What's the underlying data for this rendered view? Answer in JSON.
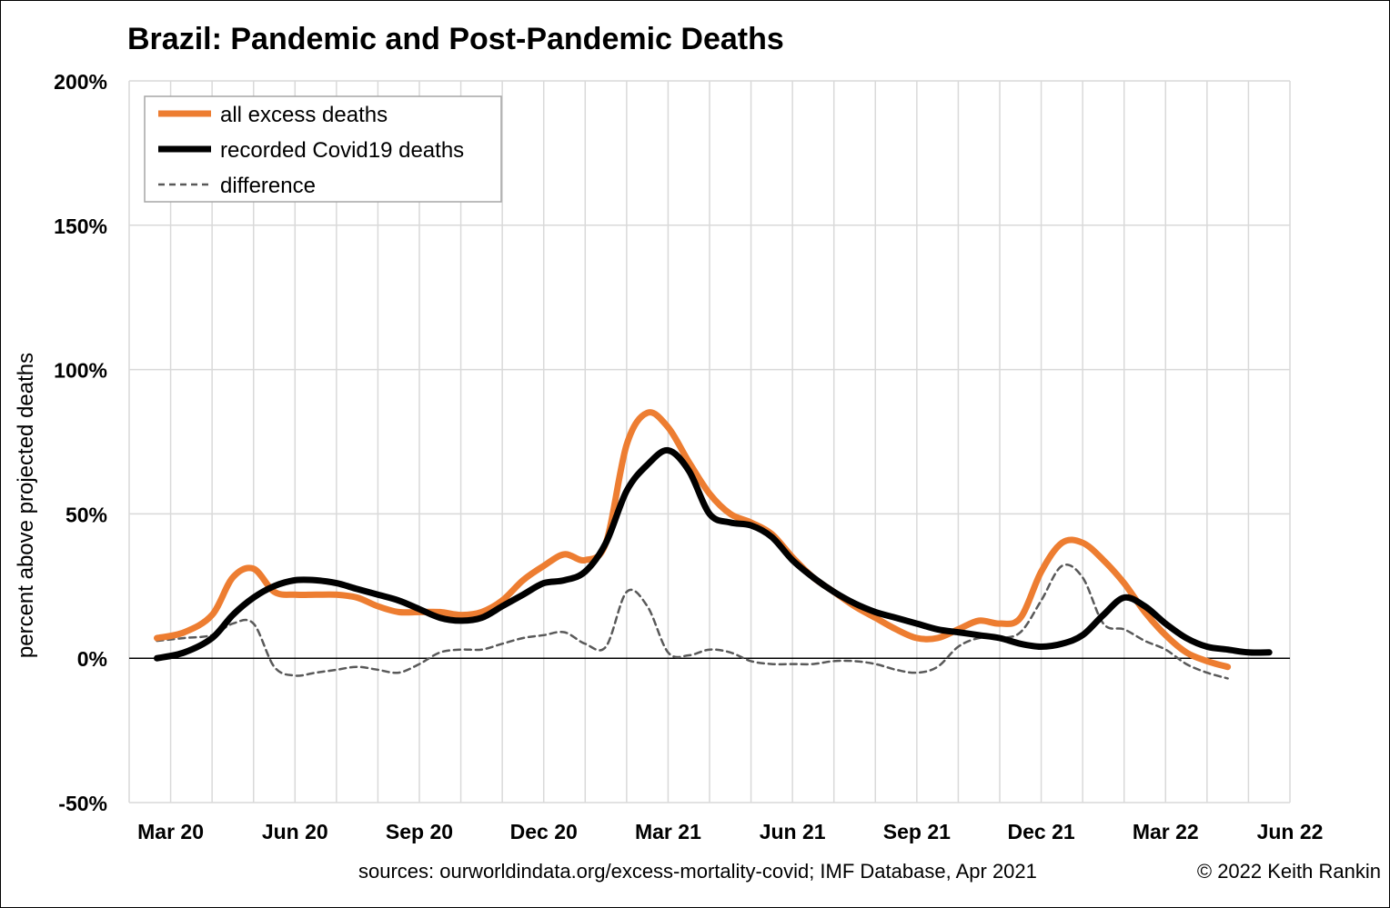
{
  "title_country": "Brazil",
  "title_rest": ": Pandemic and Post-Pandemic Deaths",
  "chart_data": {
    "type": "line",
    "title": "Brazil: Pandemic and Post-Pandemic Deaths",
    "ylabel": "percent above projected deaths",
    "xlabel": "",
    "ylim": [
      -50,
      200
    ],
    "y_ticks": [
      "-50%",
      "0%",
      "50%",
      "100%",
      "150%",
      "200%"
    ],
    "y_tick_values": [
      -50,
      0,
      50,
      100,
      150,
      200
    ],
    "x_ticks": [
      "Mar 20",
      "Jun 20",
      "Sep 20",
      "Dec 20",
      "Mar 21",
      "Jun 21",
      "Sep 21",
      "Dec 21",
      "Mar 22",
      "Jun 22"
    ],
    "x_units": "months since Mar 20",
    "grid": "vertical monthly and horizontal at each tick",
    "legend_position": "top-left",
    "series": [
      {
        "name": "all excess deaths",
        "color": "#ED7D31",
        "style": "solid-thick",
        "x": [
          -0.33,
          0.33,
          1.0,
          1.5,
          2.0,
          2.5,
          3.0,
          3.5,
          4.0,
          4.5,
          5.0,
          5.5,
          6.0,
          6.5,
          7.0,
          7.5,
          8.0,
          8.5,
          9.0,
          9.5,
          10.0,
          10.5,
          11.0,
          11.5,
          12.0,
          12.5,
          13.0,
          13.5,
          14.0,
          14.5,
          15.0,
          15.5,
          16.0,
          16.5,
          17.0,
          17.5,
          18.0,
          18.5,
          19.0,
          19.5,
          20.0,
          20.5,
          21.0,
          21.5,
          22.0,
          22.5,
          23.0,
          23.5,
          24.0,
          24.5,
          25.0,
          25.5
        ],
        "values": [
          7,
          9,
          15,
          28,
          31,
          23,
          22,
          22,
          22,
          21,
          18,
          16,
          16,
          16,
          15,
          16,
          20,
          27,
          32,
          36,
          34,
          40,
          74,
          85,
          80,
          68,
          57,
          50,
          47,
          43,
          35,
          28,
          23,
          18,
          14,
          10,
          7,
          7,
          10,
          13,
          12,
          14,
          30,
          40,
          40,
          34,
          26,
          16,
          8,
          2,
          -1,
          -3
        ]
      },
      {
        "name": "recorded Covid19 deaths",
        "color": "#000000",
        "style": "solid-thick",
        "x": [
          -0.33,
          0.33,
          1.0,
          1.5,
          2.0,
          2.5,
          3.0,
          3.5,
          4.0,
          4.5,
          5.0,
          5.5,
          6.0,
          6.5,
          7.0,
          7.5,
          8.0,
          8.5,
          9.0,
          9.5,
          10.0,
          10.5,
          11.0,
          11.5,
          12.0,
          12.5,
          13.0,
          13.5,
          14.0,
          14.5,
          15.0,
          15.5,
          16.0,
          16.5,
          17.0,
          17.5,
          18.0,
          18.5,
          19.0,
          19.5,
          20.0,
          20.5,
          21.0,
          21.5,
          22.0,
          22.5,
          23.0,
          23.5,
          24.0,
          24.5,
          25.0,
          25.5,
          26.0,
          26.5
        ],
        "values": [
          0,
          2,
          7,
          15,
          21,
          25,
          27,
          27,
          26,
          24,
          22,
          20,
          17,
          14,
          13,
          14,
          18,
          22,
          26,
          27,
          30,
          40,
          58,
          67,
          72,
          65,
          50,
          47,
          46,
          42,
          34,
          28,
          23,
          19,
          16,
          14,
          12,
          10,
          9,
          8,
          7,
          5,
          4,
          5,
          8,
          15,
          21,
          18,
          12,
          7,
          4,
          3,
          2,
          2
        ]
      },
      {
        "name": "difference",
        "color": "#595959",
        "style": "dashed",
        "x": [
          -0.33,
          0.33,
          1.0,
          1.5,
          2.0,
          2.5,
          3.0,
          3.5,
          4.0,
          4.5,
          5.0,
          5.5,
          6.0,
          6.5,
          7.0,
          7.5,
          8.0,
          8.5,
          9.0,
          9.5,
          10.0,
          10.5,
          11.0,
          11.5,
          12.0,
          12.5,
          13.0,
          13.5,
          14.0,
          14.5,
          15.0,
          15.5,
          16.0,
          16.5,
          17.0,
          17.5,
          18.0,
          18.5,
          19.0,
          19.5,
          20.0,
          20.5,
          21.0,
          21.5,
          22.0,
          22.5,
          23.0,
          23.5,
          24.0,
          24.5,
          25.0,
          25.5
        ],
        "values": [
          6,
          7,
          8,
          12,
          12,
          -3,
          -6,
          -5,
          -4,
          -3,
          -4,
          -5,
          -2,
          2,
          3,
          3,
          5,
          7,
          8,
          9,
          5,
          4,
          23,
          18,
          2,
          1,
          3,
          2,
          -1,
          -2,
          -2,
          -2,
          -1,
          -1,
          -2,
          -4,
          -5,
          -3,
          4,
          7,
          7,
          9,
          20,
          32,
          28,
          12,
          10,
          6,
          3,
          -2,
          -5,
          -7
        ]
      }
    ]
  },
  "legend": [
    {
      "label": "all excess deaths",
      "color": "#ED7D31"
    },
    {
      "label": "recorded Covid19 deaths",
      "color": "#000000"
    },
    {
      "label": "difference",
      "color": "#595959"
    }
  ],
  "sources": "sources: ourworldindata.org/excess-mortality-covid; IMF Database, Apr 2021",
  "copyright": "© 2022 Keith Rankin"
}
